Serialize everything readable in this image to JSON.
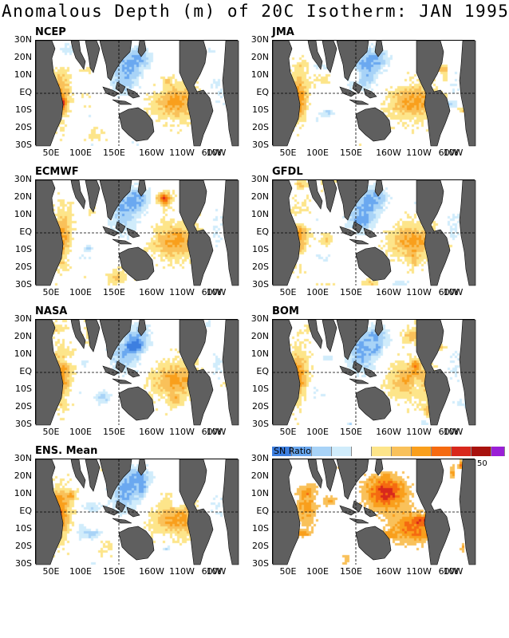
{
  "title": "Anomalous Depth (m) of 20C Isotherm: JAN 1995",
  "lat_labels": [
    "30N",
    "20N",
    "10N",
    "EQ",
    "10S",
    "20S",
    "30S"
  ],
  "lon_labels": [
    "50E",
    "100E",
    "150E",
    "160W",
    "110W",
    "60W",
    "10W"
  ],
  "colors": {
    "land": "#5f5f5f",
    "deep_blue": "#3d7fe0",
    "blue": "#6aa8f0",
    "light_blue": "#a8d3f7",
    "pale_blue": "#d0ecfb",
    "yellow": "#fde58a",
    "light_orange": "#f9c15a",
    "orange": "#f99f1c",
    "dark_orange": "#f56a10",
    "red": "#d8281c",
    "dark_red": "#a8120e",
    "purple": "#9a1fd6"
  },
  "panels": [
    {
      "id": "ncep",
      "label": "NCEP",
      "type": "anomaly",
      "seed": 11
    },
    {
      "id": "jma",
      "label": "JMA",
      "type": "anomaly",
      "seed": 23
    },
    {
      "id": "ecmwf",
      "label": "ECMWF",
      "type": "anomaly",
      "seed": 37
    },
    {
      "id": "gfdl",
      "label": "GFDL",
      "type": "anomaly",
      "seed": 41
    },
    {
      "id": "nasa",
      "label": "NASA",
      "type": "anomaly",
      "seed": 53
    },
    {
      "id": "bom",
      "label": "BOM",
      "type": "anomaly",
      "seed": 67
    },
    {
      "id": "ens",
      "label": "ENS. Mean",
      "type": "anomaly",
      "seed": 79
    },
    {
      "id": "sn",
      "label": "",
      "type": "snratio",
      "seed": 97
    }
  ],
  "colorbar": {
    "label": "SN Ratio",
    "max_label": "50",
    "swatches": [
      "#3d7fe0",
      "#6aa8f0",
      "#a8d3f7",
      "#d0ecfb",
      "#ffffff",
      "#fde58a",
      "#f9c15a",
      "#f99f1c",
      "#f56a10",
      "#d8281c",
      "#a8120e",
      "#9a1fd6"
    ]
  }
}
